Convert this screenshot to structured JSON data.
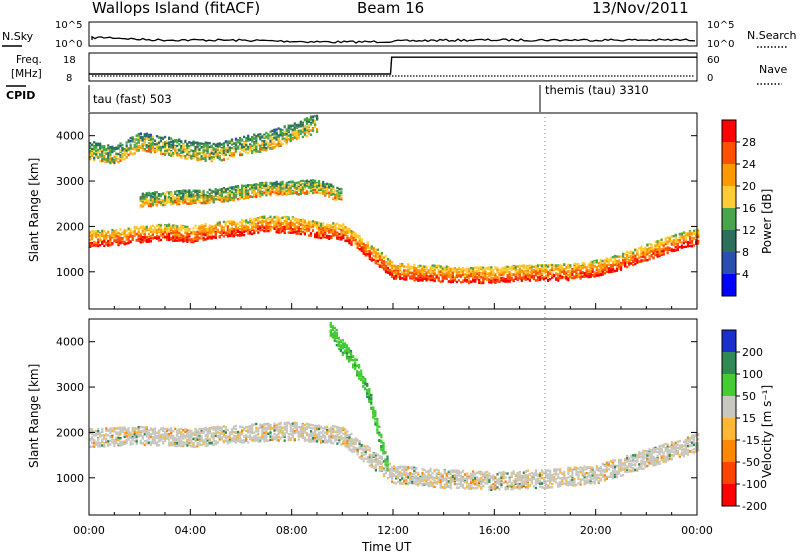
{
  "header": {
    "station": "Wallops Island (fitACF)",
    "beam": "Beam 16",
    "date": "13/Nov/2011"
  },
  "sky_panel": {
    "left_label": "N.Sky",
    "right_label": "N.Search",
    "left_ticks": [
      "10^5",
      "10^0"
    ],
    "right_ticks": [
      "10^5",
      "10^0"
    ]
  },
  "freq_panel": {
    "left_label_1": "Freq.",
    "left_label_2": "[MHz]",
    "right_label": "Nave",
    "left_ticks": [
      "18",
      "8"
    ],
    "right_ticks": [
      "60",
      "0"
    ]
  },
  "cpid": {
    "label": "CPID",
    "segments": [
      {
        "name": "tau (fast) 503",
        "start_hour": 0
      },
      {
        "name": "themis (tau) 3310",
        "start_hour": 18
      }
    ]
  },
  "power_panel": {
    "ylabel": "Slant Range [km]",
    "colorbar_label": "Power [dB]",
    "colorbar_ticks": [
      "28",
      "24",
      "20",
      "16",
      "12",
      "8",
      "4"
    ],
    "colorbar_colors": [
      "#ff0000",
      "#ff5000",
      "#ff9900",
      "#ffcc33",
      "#4aa54a",
      "#2d6f5d",
      "#2a4fb0",
      "#0000ff"
    ]
  },
  "velocity_panel": {
    "ylabel": "Slant Range [km]",
    "colorbar_label": "Velocity [m s⁻¹]",
    "colorbar_ticks": [
      "200",
      "100",
      "50",
      "15",
      "-15",
      "-50",
      "-100",
      "-200"
    ],
    "colorbar_colors": [
      "#1a2fcc",
      "#2f8a55",
      "#44cc33",
      "#c8c8c0",
      "#ffb833",
      "#ff8800",
      "#ff4400",
      "#ff0000"
    ]
  },
  "x_axis": {
    "label": "Time UT",
    "ticks": [
      "00:00",
      "04:00",
      "08:00",
      "12:00",
      "16:00",
      "20:00",
      "00:00"
    ]
  },
  "chart_data": [
    {
      "type": "line",
      "name": "freq_and_nave",
      "x_unit": "hour UT",
      "freq_mhz": [
        {
          "x": 0,
          "y": 10.5
        },
        {
          "x": 0.2,
          "y": 10.5
        },
        {
          "x": 11.9,
          "y": 10.5
        },
        {
          "x": 11.95,
          "y": 16.5
        },
        {
          "x": 24,
          "y": 16.5
        }
      ],
      "nave_ylim": [
        0,
        60
      ],
      "freq_ylim": [
        8,
        18
      ]
    },
    {
      "type": "heatmap",
      "name": "power",
      "x_unit": "hour UT",
      "y_unit": "km",
      "xlim": [
        0,
        24
      ],
      "ylim": [
        180,
        4500
      ],
      "zlim": [
        0,
        30
      ],
      "bands": [
        {
          "series": "main F-region echo",
          "z": 28,
          "y_center": [
            [
              0,
              1750
            ],
            [
              1,
              1780
            ],
            [
              2,
              1850
            ],
            [
              3,
              1900
            ],
            [
              4,
              1850
            ],
            [
              5,
              1950
            ],
            [
              6,
              2000
            ],
            [
              7,
              2080
            ],
            [
              8,
              2050
            ],
            [
              9,
              1950
            ],
            [
              10,
              1900
            ],
            [
              11,
              1500
            ],
            [
              12,
              1050
            ],
            [
              13,
              1000
            ],
            [
              14,
              980
            ],
            [
              15,
              950
            ],
            [
              16,
              950
            ],
            [
              17,
              1000
            ],
            [
              18,
              1000
            ],
            [
              19,
              1020
            ],
            [
              20,
              1100
            ],
            [
              21,
              1250
            ],
            [
              22,
              1450
            ],
            [
              23,
              1650
            ],
            [
              24,
              1800
            ]
          ],
          "thickness": 350
        },
        {
          "series": "upper scatter",
          "z": 18,
          "y_center": [
            [
              0,
              3700
            ],
            [
              1,
              3600
            ],
            [
              2,
              3900
            ],
            [
              3,
              3800
            ],
            [
              4,
              3700
            ],
            [
              5,
              3650
            ],
            [
              6,
              3800
            ],
            [
              7,
              3900
            ],
            [
              8,
              4100
            ],
            [
              9,
              4300
            ]
          ],
          "thickness": 400
        },
        {
          "series": "sporadic echo",
          "z": 20,
          "y_center": [
            [
              2,
              2600
            ],
            [
              3,
              2650
            ],
            [
              5,
              2700
            ],
            [
              7,
              2850
            ],
            [
              9,
              2900
            ],
            [
              10,
              2700
            ]
          ],
          "thickness": 300
        }
      ]
    },
    {
      "type": "heatmap",
      "name": "velocity",
      "x_unit": "hour UT",
      "y_unit": "km",
      "xlim": [
        0,
        24
      ],
      "ylim": [
        180,
        4500
      ],
      "zlim": [
        -200,
        200
      ],
      "bands": [
        {
          "series": "ground scatter",
          "z": 0,
          "y_center": [
            [
              0,
              1900
            ],
            [
              2,
              1950
            ],
            [
              4,
              1900
            ],
            [
              6,
              2000
            ],
            [
              8,
              2050
            ],
            [
              10,
              1950
            ],
            [
              11,
              1500
            ],
            [
              12,
              1100
            ],
            [
              14,
              1000
            ],
            [
              16,
              950
            ],
            [
              18,
              1000
            ],
            [
              20,
              1100
            ],
            [
              22,
              1450
            ],
            [
              24,
              1800
            ]
          ],
          "thickness": 400
        },
        {
          "series": "positive streak",
          "z": 80,
          "y_center": [
            [
              9.5,
              4300
            ],
            [
              10.5,
              3500
            ],
            [
              11,
              2900
            ],
            [
              11.5,
              1800
            ],
            [
              11.8,
              1200
            ]
          ],
          "thickness": 350
        }
      ]
    }
  ]
}
